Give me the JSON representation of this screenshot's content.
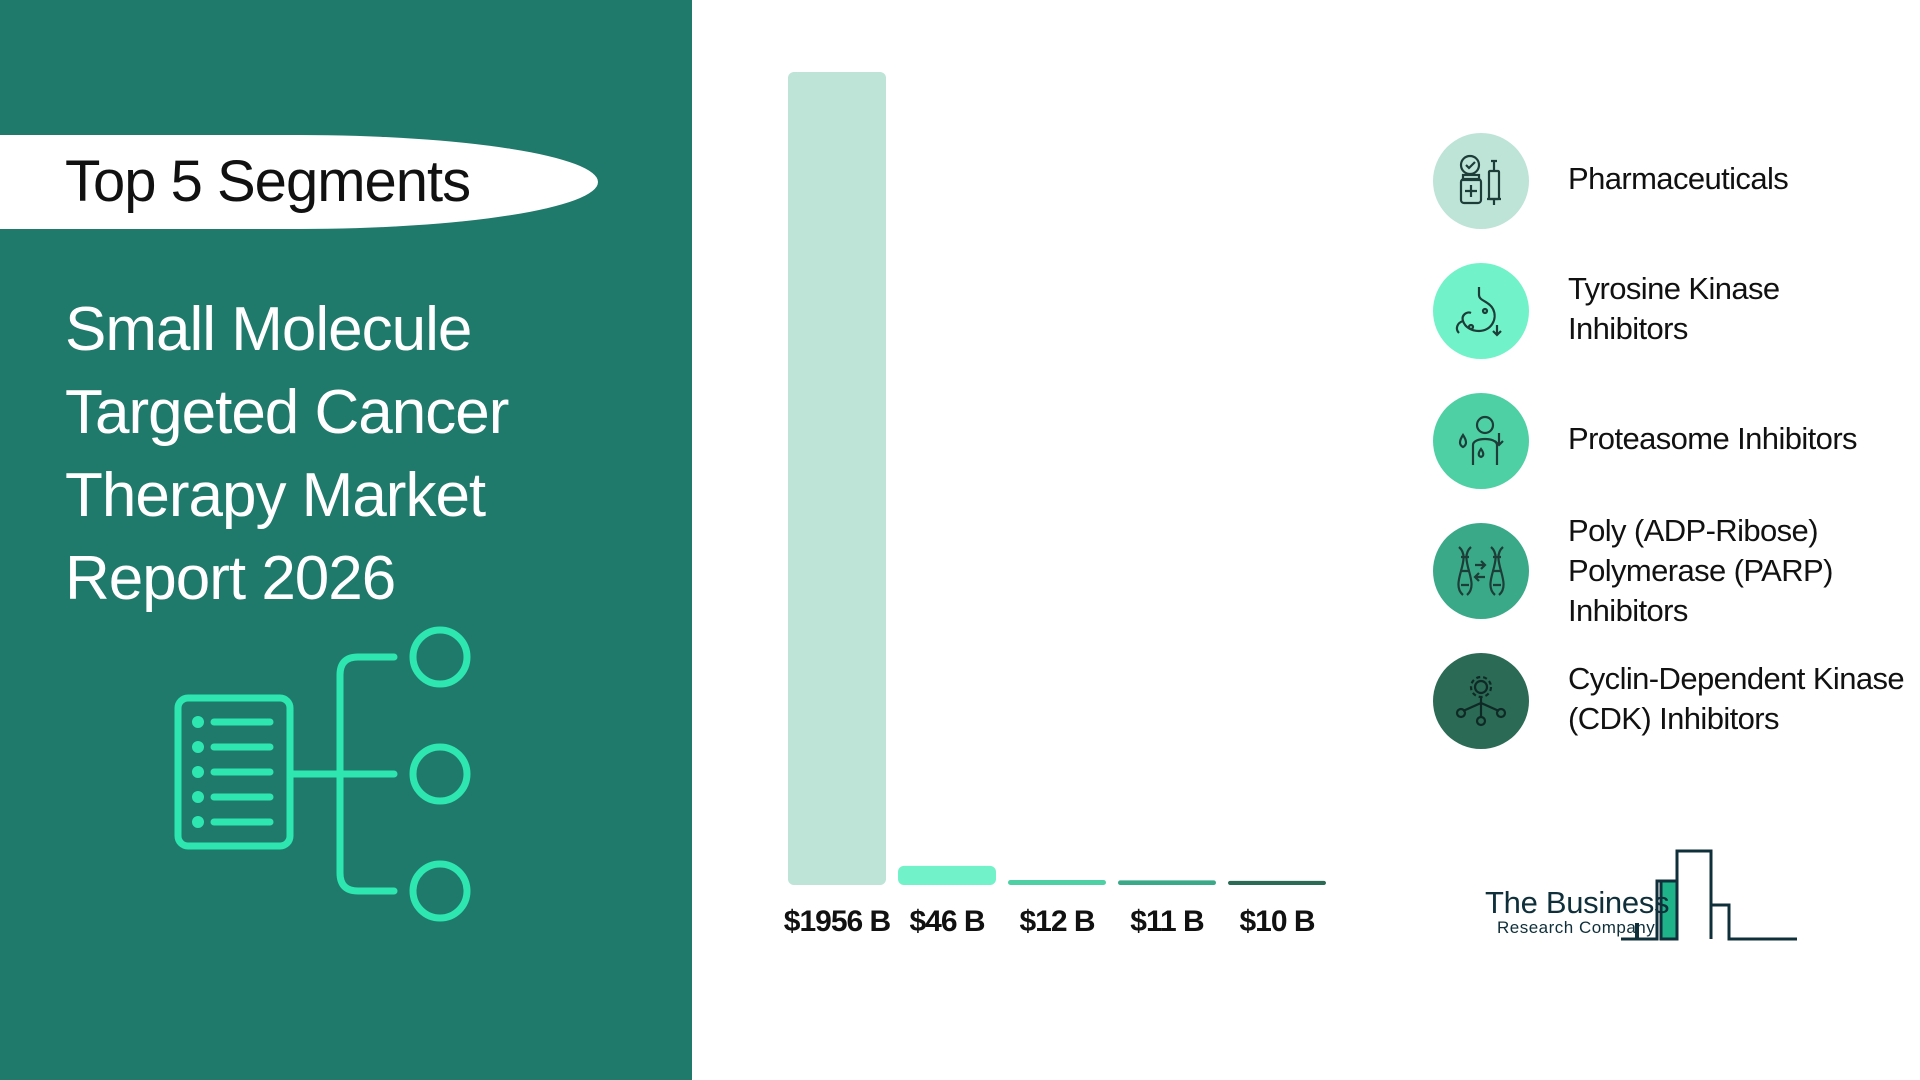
{
  "header": {
    "title": "Top 5 Segments"
  },
  "report": {
    "title_lines": [
      "Small Molecule",
      "Targeted Cancer",
      "Therapy Market",
      "Report 2026"
    ]
  },
  "chart_data": {
    "type": "bar",
    "categories": [
      "Pharmaceuticals",
      "Tyrosine Kinase Inhibitors",
      "Proteasome Inhibitors",
      "Poly (ADP-Ribose) Polymerase (PARP) Inhibitors",
      "Cyclin-Dependent Kinase (CDK) Inhibitors"
    ],
    "values": [
      1956,
      46,
      12,
      11,
      10
    ],
    "value_labels": [
      "$1956 B",
      "$46 B",
      "$12 B",
      "$11 B",
      "$10 B"
    ],
    "unit": "B",
    "colors": [
      "#bde4d6",
      "#72f2c8",
      "#4fd0a4",
      "#3aa987",
      "#2b6a55"
    ],
    "ylim": [
      0,
      1956
    ],
    "grid": false,
    "legend_position": "right"
  },
  "legend": {
    "items": [
      {
        "label_lines": [
          "Pharmaceuticals"
        ],
        "icon": "medicine-syringe-icon",
        "circle_color": "#bde4d6"
      },
      {
        "label_lines": [
          "Tyrosine Kinase",
          "Inhibitors"
        ],
        "icon": "stomach-icon",
        "circle_color": "#72f2c8"
      },
      {
        "label_lines": [
          "Proteasome Inhibitors"
        ],
        "icon": "patient-dehydration-icon",
        "circle_color": "#4fd0a4"
      },
      {
        "label_lines": [
          "Poly (ADP-Ribose)",
          "Polymerase (PARP)",
          "Inhibitors"
        ],
        "icon": "dna-icon",
        "circle_color": "#3aa987"
      },
      {
        "label_lines": [
          "Cyclin-Dependent Kinase",
          "(CDK) Inhibitors"
        ],
        "icon": "gear-network-icon",
        "circle_color": "#2b6a55"
      }
    ]
  },
  "brand": {
    "line1": "The Business",
    "line2": "Research Company"
  },
  "colors": {
    "panel": "#1f7a6b",
    "accent": "#2ee6b0",
    "text_dark": "#111111"
  }
}
